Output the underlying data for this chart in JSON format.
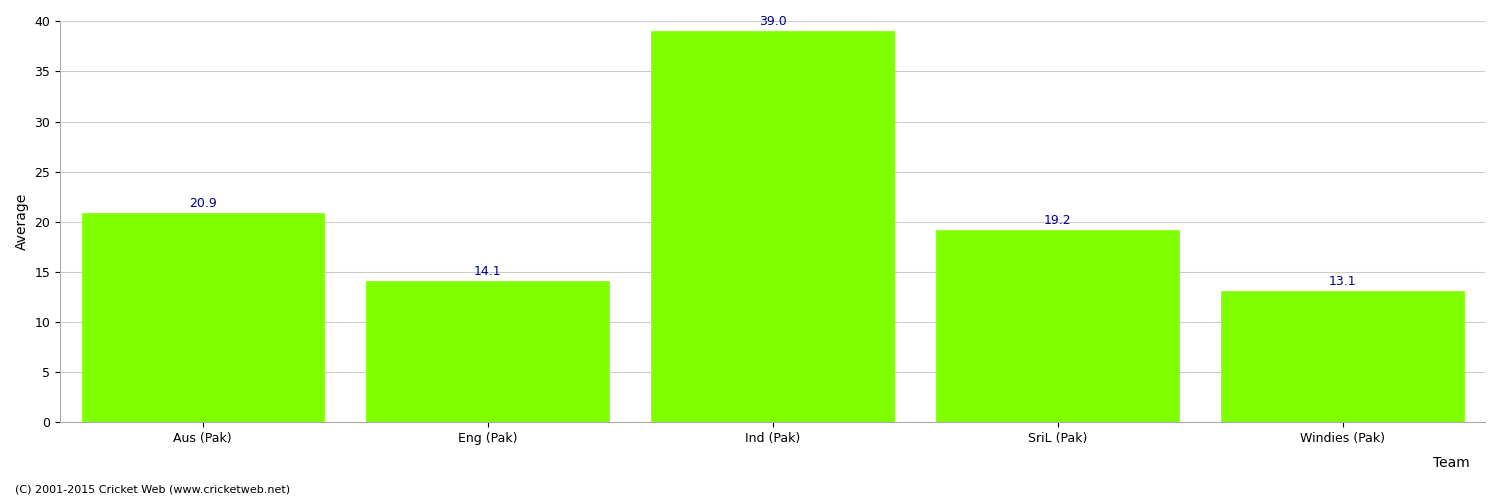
{
  "categories": [
    "Aus (Pak)",
    "Eng (Pak)",
    "Ind (Pak)",
    "SriL (Pak)",
    "Windies (Pak)"
  ],
  "values": [
    20.9,
    14.1,
    39.0,
    19.2,
    13.1
  ],
  "bar_color": "#7fff00",
  "bar_edge_color": "#7fff00",
  "label_color": "#00008B",
  "xlabel": "Team",
  "ylabel": "Average",
  "ylim": [
    0,
    40
  ],
  "yticks": [
    0,
    5,
    10,
    15,
    20,
    25,
    30,
    35,
    40
  ],
  "background_color": "#ffffff",
  "grid_color": "#cccccc",
  "label_fontsize": 9,
  "axis_fontsize": 10,
  "tick_fontsize": 9,
  "footnote": "(C) 2001-2015 Cricket Web (www.cricketweb.net)"
}
